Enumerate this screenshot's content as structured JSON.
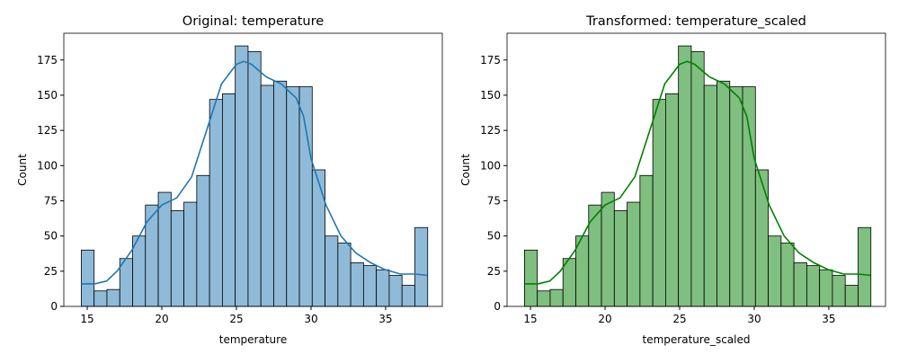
{
  "chart_data": [
    {
      "type": "histogram",
      "title": "Original: temperature",
      "xlabel": "temperature",
      "ylabel": "Count",
      "bins": [
        14.6,
        15.46,
        16.32,
        17.18,
        18.04,
        18.9,
        19.76,
        20.62,
        21.48,
        22.34,
        23.2,
        24.06,
        24.92,
        25.78,
        26.64,
        27.5,
        28.36,
        29.22,
        30.08,
        30.94,
        31.8,
        32.66,
        33.52,
        34.38,
        35.24,
        36.1,
        36.96,
        37.82
      ],
      "values": [
        40,
        11,
        12,
        34,
        50,
        72,
        81,
        68,
        74,
        93,
        147,
        151,
        185,
        181,
        157,
        160,
        156,
        156,
        97,
        50,
        45,
        31,
        29,
        26,
        22,
        15,
        56
      ],
      "color": "#8fbbd9",
      "line_color": "#1f77b4",
      "kde": {
        "x": [
          14.6,
          15.5,
          16.3,
          17,
          18,
          19,
          20,
          21,
          22,
          23,
          24,
          25,
          25.5,
          26,
          27,
          28,
          29,
          29.5,
          30,
          31,
          32,
          33,
          34,
          35,
          36,
          37,
          37.8
        ],
        "values": [
          16,
          16,
          18,
          25,
          40,
          60,
          72,
          77,
          92,
          125,
          158,
          172,
          174,
          172,
          163,
          158,
          148,
          135,
          105,
          72,
          50,
          38,
          31,
          26,
          23,
          23,
          22
        ]
      },
      "xlim": [
        13.43,
        38.8
      ],
      "ylim": [
        0,
        194
      ],
      "xticks": [
        15,
        20,
        25,
        30,
        35
      ],
      "yticks": [
        0,
        25,
        50,
        75,
        100,
        125,
        150,
        175
      ]
    },
    {
      "type": "histogram",
      "title": "Transformed: temperature_scaled",
      "xlabel": "temperature_scaled",
      "ylabel": "Count",
      "bins": [
        14.6,
        15.46,
        16.32,
        17.18,
        18.04,
        18.9,
        19.76,
        20.62,
        21.48,
        22.34,
        23.2,
        24.06,
        24.92,
        25.78,
        26.64,
        27.5,
        28.36,
        29.22,
        30.08,
        30.94,
        31.8,
        32.66,
        33.52,
        34.38,
        35.24,
        36.1,
        36.96,
        37.82
      ],
      "values": [
        40,
        11,
        12,
        34,
        50,
        72,
        81,
        68,
        74,
        93,
        147,
        151,
        185,
        181,
        157,
        160,
        156,
        156,
        97,
        50,
        45,
        31,
        29,
        26,
        22,
        15,
        56
      ],
      "color": "#7fbf7f",
      "line_color": "#008000",
      "kde": {
        "x": [
          14.6,
          15.5,
          16.3,
          17,
          18,
          19,
          20,
          21,
          22,
          23,
          24,
          25,
          25.5,
          26,
          27,
          28,
          29,
          29.5,
          30,
          31,
          32,
          33,
          34,
          35,
          36,
          37,
          37.8
        ],
        "values": [
          16,
          16,
          18,
          25,
          40,
          60,
          72,
          77,
          92,
          125,
          158,
          172,
          174,
          172,
          163,
          158,
          148,
          135,
          105,
          72,
          50,
          38,
          31,
          26,
          23,
          23,
          22
        ]
      },
      "xlim": [
        13.43,
        38.8
      ],
      "ylim": [
        0,
        194
      ],
      "xticks": [
        15,
        20,
        25,
        30,
        35
      ],
      "yticks": [
        0,
        25,
        50,
        75,
        100,
        125,
        150,
        175
      ]
    }
  ]
}
